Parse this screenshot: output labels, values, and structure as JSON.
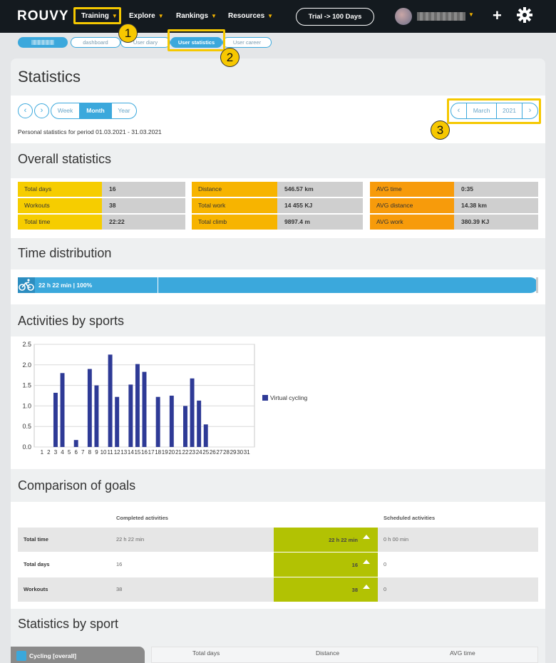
{
  "topnav": {
    "logo_text": "ROUVY",
    "items": [
      {
        "label": "Training"
      },
      {
        "label": "Explore"
      },
      {
        "label": "Rankings"
      },
      {
        "label": "Resources"
      }
    ],
    "trial_button": "Trial -> 100 Days"
  },
  "subnav": {
    "tabs": [
      {
        "label": "dashboard"
      },
      {
        "label": "User diary"
      },
      {
        "label": "User statistics"
      },
      {
        "label": "User career"
      }
    ]
  },
  "page": {
    "title": "Statistics",
    "period_buttons": [
      "Week",
      "Month",
      "Year"
    ],
    "active_period": "Month",
    "period_text": "Personal statistics for period 01.03.2021 - 31.03.2021",
    "month": "March",
    "year": "2021"
  },
  "overall": {
    "title": "Overall statistics",
    "col1": [
      {
        "label": "Total days",
        "value": "16"
      },
      {
        "label": "Workouts",
        "value": "38"
      },
      {
        "label": "Total time",
        "value": "22:22"
      }
    ],
    "col2": [
      {
        "label": "Distance",
        "value": "546.57 km"
      },
      {
        "label": "Total work",
        "value": "14 455 KJ"
      },
      {
        "label": "Total climb",
        "value": "9897.4 m"
      }
    ],
    "col3": [
      {
        "label": "AVG time",
        "value": "0:35"
      },
      {
        "label": "AVG distance",
        "value": "14.38 km"
      },
      {
        "label": "AVG work",
        "value": "380.39 KJ"
      }
    ],
    "colors": {
      "col1": "#f6cd00",
      "col2": "#f7b400",
      "col3": "#f79b0b"
    }
  },
  "time_distribution": {
    "title": "Time distribution",
    "bar_text": "22 h 22 min | 100%"
  },
  "activities": {
    "title": "Activities by sports"
  },
  "chart_data": {
    "type": "bar",
    "categories": [
      "1",
      "2",
      "3",
      "4",
      "5",
      "6",
      "7",
      "8",
      "9",
      "10",
      "11",
      "12",
      "13",
      "14",
      "15",
      "16",
      "17",
      "18",
      "19",
      "20",
      "21",
      "22",
      "23",
      "24",
      "25",
      "26",
      "27",
      "28",
      "29",
      "30",
      "31"
    ],
    "series": [
      {
        "name": "Virtual cycling",
        "values": [
          0,
          0,
          1.32,
          1.8,
          0,
          0.17,
          0,
          1.9,
          1.5,
          0,
          2.25,
          1.22,
          0,
          1.52,
          2.02,
          1.83,
          0,
          1.22,
          0,
          1.25,
          0,
          1.0,
          1.67,
          1.13,
          0.55,
          0,
          0,
          0,
          0,
          0,
          0
        ]
      }
    ],
    "ylim": [
      0,
      2.5
    ],
    "yticks": [
      "0.0",
      "0.5",
      "1.0",
      "1.5",
      "2.0",
      "2.5"
    ],
    "color": "#2e3a96",
    "grid": true,
    "legend": "right"
  },
  "goals": {
    "title": "Comparison of goals",
    "col_completed": "Completed activities",
    "col_scheduled": "Scheduled activities",
    "rows": [
      {
        "label": "Total time",
        "completed": "22 h 22 min",
        "bar": "22 h 22 min",
        "scheduled": "0 h 00 min"
      },
      {
        "label": "Total days",
        "completed": "16",
        "bar": "16",
        "scheduled": "0"
      },
      {
        "label": "Workouts",
        "completed": "38",
        "bar": "38",
        "scheduled": "0"
      }
    ]
  },
  "by_sport": {
    "title": "Statistics by sport",
    "tab": "Cycling [overall]",
    "headers": [
      "Total days",
      "Distance",
      "AVG time"
    ]
  },
  "annotations": [
    "1",
    "2",
    "3"
  ]
}
